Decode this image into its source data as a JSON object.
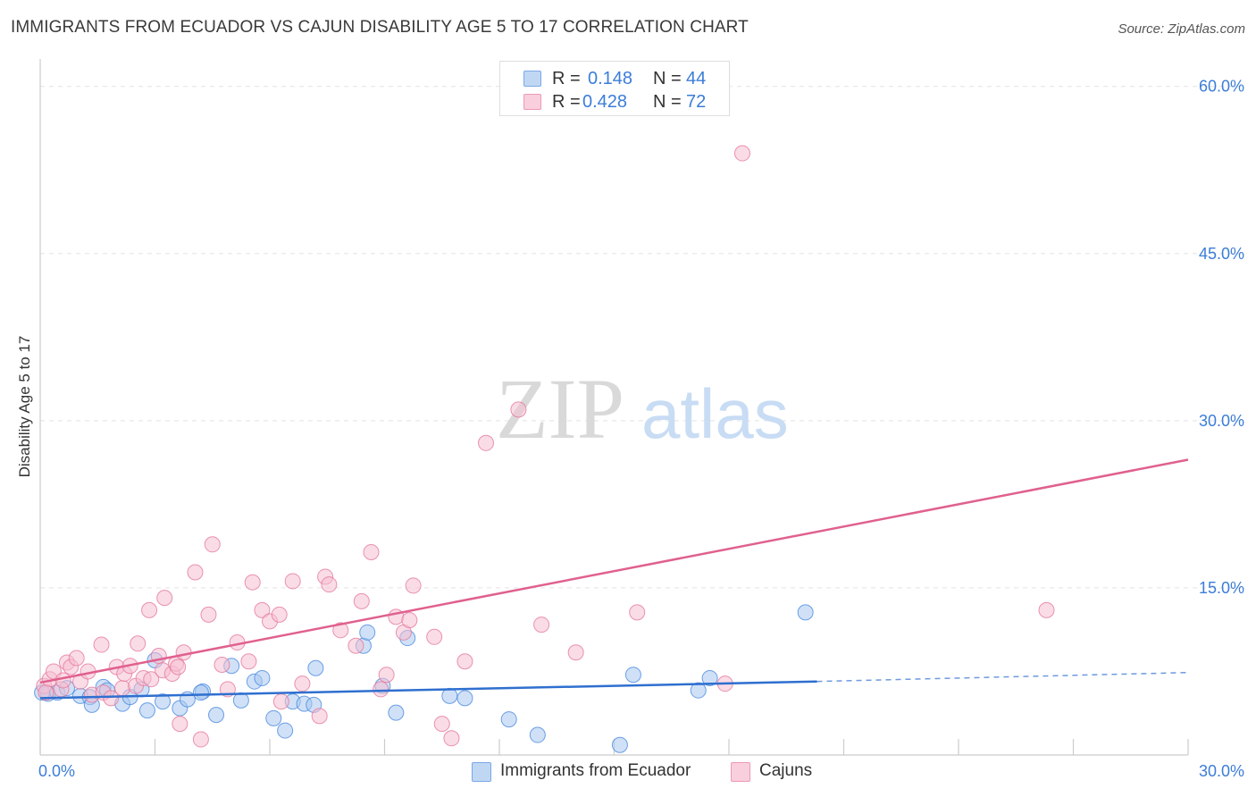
{
  "chart_data": {
    "type": "scatter",
    "title": "IMMIGRANTS FROM ECUADOR VS CAJUN DISABILITY AGE 5 TO 17 CORRELATION CHART",
    "source": "Source: ZipAtlas.com",
    "xlabel": "",
    "ylabel": "Disability Age 5 to 17",
    "xlim": [
      0,
      30
    ],
    "ylim": [
      0,
      61.5
    ],
    "x_tick_labels": [
      "0.0%",
      "30.0%"
    ],
    "y_tick_values": [
      15,
      30,
      45,
      60
    ],
    "y_tick_labels": [
      "15.0%",
      "30.0%",
      "45.0%",
      "60.0%"
    ],
    "watermark": {
      "zip": "ZIP",
      "atlas": "atlas"
    },
    "legend": [
      {
        "r_label": "R =",
        "r_value": "0.148",
        "n_label": "N =",
        "n_value": "44"
      },
      {
        "r_label": "R =",
        "r_value": "0.428",
        "n_label": "N =",
        "n_value": "72"
      }
    ],
    "series": [
      {
        "name": "Immigrants from Ecuador",
        "color": "#4a89e0",
        "fill": "#a9c8f0",
        "trend": {
          "x0": 0,
          "y0": 5.1,
          "x1": 20.3,
          "y1": 6.6,
          "dash_x1": 30,
          "dash_y1": 7.4,
          "color": "#2f6fcf"
        },
        "points": [
          [
            0.2,
            5.5
          ],
          [
            0.45,
            5.6
          ],
          [
            0.7,
            6.0
          ],
          [
            1.05,
            5.3
          ],
          [
            1.3,
            5.2
          ],
          [
            1.35,
            4.5
          ],
          [
            1.65,
            6.1
          ],
          [
            1.75,
            5.8
          ],
          [
            2.15,
            4.6
          ],
          [
            2.35,
            5.2
          ],
          [
            2.65,
            5.9
          ],
          [
            2.8,
            4.0
          ],
          [
            3.0,
            8.5
          ],
          [
            3.2,
            4.8
          ],
          [
            3.65,
            4.2
          ],
          [
            3.85,
            5.0
          ],
          [
            4.25,
            5.7
          ],
          [
            4.2,
            5.6
          ],
          [
            4.6,
            3.6
          ],
          [
            5.0,
            8.0
          ],
          [
            5.25,
            4.9
          ],
          [
            5.6,
            6.6
          ],
          [
            5.8,
            6.9
          ],
          [
            6.1,
            3.3
          ],
          [
            6.4,
            2.2
          ],
          [
            6.6,
            4.8
          ],
          [
            6.9,
            4.6
          ],
          [
            7.15,
            4.5
          ],
          [
            7.2,
            7.8
          ],
          [
            8.45,
            9.8
          ],
          [
            8.55,
            11.0
          ],
          [
            8.95,
            6.2
          ],
          [
            9.3,
            3.8
          ],
          [
            9.6,
            10.5
          ],
          [
            10.7,
            5.3
          ],
          [
            11.1,
            5.1
          ],
          [
            12.25,
            3.2
          ],
          [
            13.0,
            1.8
          ],
          [
            15.15,
            0.9
          ],
          [
            15.5,
            7.2
          ],
          [
            17.2,
            5.8
          ],
          [
            17.5,
            6.9
          ],
          [
            20.0,
            12.8
          ],
          [
            0.05,
            5.6
          ]
        ]
      },
      {
        "name": "Cajuns",
        "color": "#e5799c",
        "fill": "#f6bfd1",
        "trend": {
          "x0": 0,
          "y0": 6.5,
          "x1": 30,
          "y1": 26.5,
          "color": "#e0608e"
        },
        "points": [
          [
            0.1,
            6.2
          ],
          [
            0.25,
            6.8
          ],
          [
            0.35,
            7.5
          ],
          [
            0.55,
            5.9
          ],
          [
            0.7,
            8.3
          ],
          [
            0.8,
            7.9
          ],
          [
            0.95,
            8.7
          ],
          [
            1.05,
            6.6
          ],
          [
            1.25,
            7.5
          ],
          [
            1.35,
            5.4
          ],
          [
            1.6,
            9.9
          ],
          [
            1.65,
            5.6
          ],
          [
            1.85,
            5.1
          ],
          [
            2.0,
            7.9
          ],
          [
            2.15,
            6.0
          ],
          [
            2.2,
            7.3
          ],
          [
            2.35,
            8.0
          ],
          [
            2.5,
            6.2
          ],
          [
            2.55,
            10.0
          ],
          [
            2.7,
            6.9
          ],
          [
            2.9,
            6.8
          ],
          [
            2.85,
            13.0
          ],
          [
            3.1,
            8.9
          ],
          [
            3.2,
            7.6
          ],
          [
            3.25,
            14.1
          ],
          [
            3.45,
            7.3
          ],
          [
            3.55,
            8.2
          ],
          [
            3.6,
            7.9
          ],
          [
            3.65,
            2.8
          ],
          [
            3.75,
            9.2
          ],
          [
            4.05,
            16.4
          ],
          [
            4.2,
            1.4
          ],
          [
            4.5,
            18.9
          ],
          [
            4.4,
            12.6
          ],
          [
            4.75,
            8.1
          ],
          [
            4.9,
            5.9
          ],
          [
            5.15,
            10.1
          ],
          [
            5.45,
            8.4
          ],
          [
            5.55,
            15.5
          ],
          [
            5.8,
            13.0
          ],
          [
            6.0,
            12.0
          ],
          [
            6.25,
            12.6
          ],
          [
            6.6,
            15.6
          ],
          [
            6.3,
            4.8
          ],
          [
            6.85,
            6.4
          ],
          [
            7.3,
            3.5
          ],
          [
            7.45,
            16.0
          ],
          [
            7.55,
            15.3
          ],
          [
            7.85,
            11.2
          ],
          [
            8.25,
            9.8
          ],
          [
            8.4,
            13.8
          ],
          [
            8.65,
            18.2
          ],
          [
            8.9,
            5.9
          ],
          [
            9.05,
            7.2
          ],
          [
            9.3,
            12.4
          ],
          [
            9.5,
            11.0
          ],
          [
            9.65,
            12.1
          ],
          [
            9.75,
            15.2
          ],
          [
            10.3,
            10.6
          ],
          [
            10.5,
            2.8
          ],
          [
            10.75,
            1.5
          ],
          [
            11.1,
            8.4
          ],
          [
            11.65,
            28.0
          ],
          [
            12.5,
            31.0
          ],
          [
            13.1,
            11.7
          ],
          [
            14.0,
            9.2
          ],
          [
            15.6,
            12.8
          ],
          [
            17.9,
            6.4
          ],
          [
            18.35,
            54.0
          ],
          [
            26.3,
            13.0
          ],
          [
            0.15,
            5.6
          ],
          [
            0.6,
            6.7
          ]
        ]
      }
    ]
  }
}
